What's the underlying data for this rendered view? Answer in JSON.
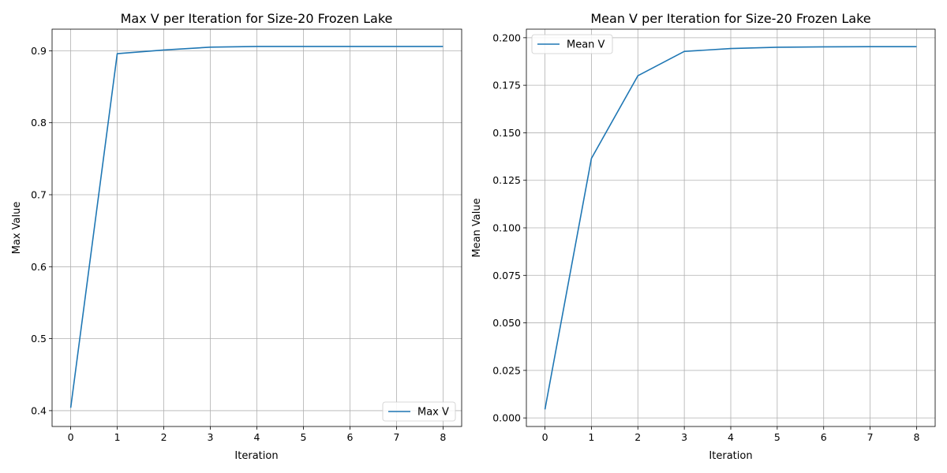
{
  "chart_data": [
    {
      "type": "line",
      "title": "Max V per Iteration for Size-20 Frozen Lake",
      "xlabel": "Iteration",
      "ylabel": "Max Value",
      "xlim": [
        -0.4,
        8.4
      ],
      "ylim": [
        0.378,
        0.93
      ],
      "x_ticks": [
        0,
        1,
        2,
        3,
        4,
        5,
        6,
        7,
        8
      ],
      "y_ticks": [
        0.4,
        0.5,
        0.6,
        0.7,
        0.8,
        0.9
      ],
      "y_tick_labels": [
        "0.4",
        "0.5",
        "0.6",
        "0.7",
        "0.8",
        "0.9"
      ],
      "grid": true,
      "legend_position": "lower-right",
      "color": "#1f77b4",
      "series": [
        {
          "name": "Max V",
          "x": [
            0,
            1,
            2,
            3,
            4,
            5,
            6,
            7,
            8
          ],
          "values": [
            0.404,
            0.896,
            0.901,
            0.905,
            0.906,
            0.906,
            0.906,
            0.906,
            0.906
          ]
        }
      ]
    },
    {
      "type": "line",
      "title": "Mean V per Iteration for Size-20 Frozen Lake",
      "xlabel": "Iteration",
      "ylabel": "Mean Value",
      "xlim": [
        -0.4,
        8.4
      ],
      "ylim": [
        -0.0045,
        0.2045
      ],
      "x_ticks": [
        0,
        1,
        2,
        3,
        4,
        5,
        6,
        7,
        8
      ],
      "y_ticks": [
        0.0,
        0.025,
        0.05,
        0.075,
        0.1,
        0.125,
        0.15,
        0.175,
        0.2
      ],
      "y_tick_labels": [
        "0.000",
        "0.025",
        "0.050",
        "0.075",
        "0.100",
        "0.125",
        "0.150",
        "0.175",
        "0.200"
      ],
      "grid": true,
      "legend_position": "upper-left",
      "color": "#1f77b4",
      "series": [
        {
          "name": "Mean V",
          "x": [
            0,
            1,
            2,
            3,
            4,
            5,
            6,
            7,
            8
          ],
          "values": [
            0.0045,
            0.1365,
            0.18,
            0.1928,
            0.1943,
            0.195,
            0.1952,
            0.1953,
            0.1953
          ]
        }
      ]
    }
  ]
}
